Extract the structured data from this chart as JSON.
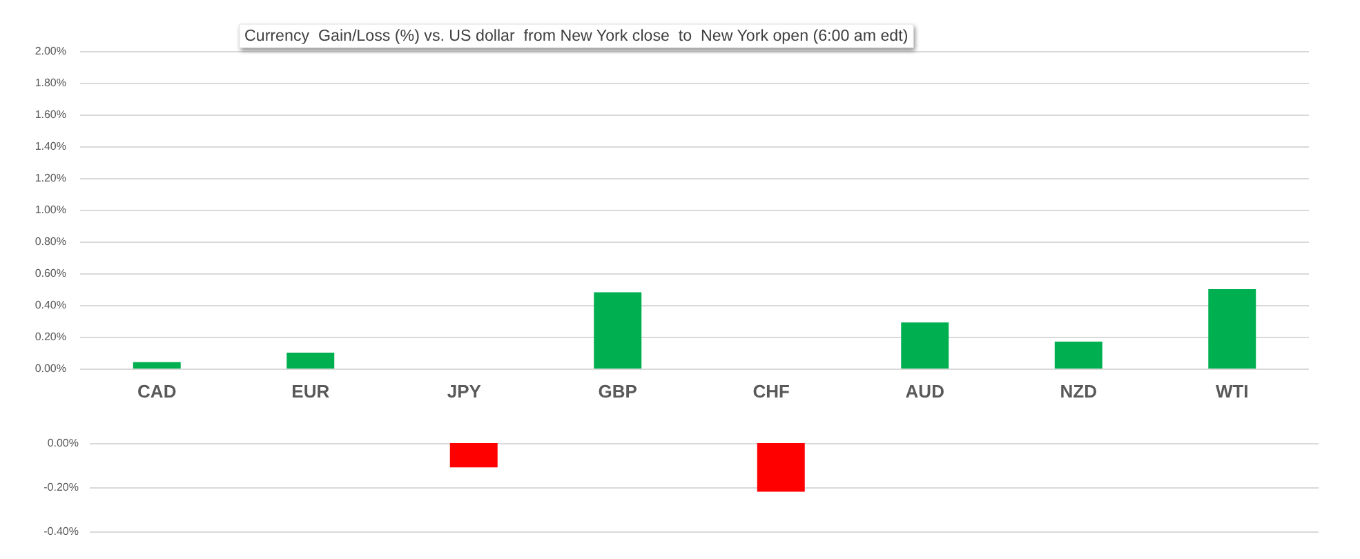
{
  "chart_data": [
    {
      "type": "bar",
      "title": "Currency  Gain/Loss (%) vs. US dollar  from New York close  to  New York open (6:00 am edt)",
      "categories": [
        "CAD",
        "EUR",
        "JPY",
        "GBP",
        "CHF",
        "AUD",
        "NZD",
        "WTI"
      ],
      "values": [
        0.04,
        0.1,
        null,
        0.48,
        null,
        0.29,
        0.17,
        0.5
      ],
      "color": "#00b050",
      "ylim": [
        0,
        2
      ],
      "yticks": [
        {
          "value": 0,
          "label": "0.00%"
        },
        {
          "value": 0.2,
          "label": "0.20%"
        },
        {
          "value": 0.4,
          "label": "0.40%"
        },
        {
          "value": 0.6,
          "label": "0.60%"
        },
        {
          "value": 0.8,
          "label": "0.80%"
        },
        {
          "value": 1.0,
          "label": "1.00%"
        },
        {
          "value": 1.2,
          "label": "1.20%"
        },
        {
          "value": 1.4,
          "label": "1.40%"
        },
        {
          "value": 1.6,
          "label": "1.60%"
        },
        {
          "value": 1.8,
          "label": "1.80%"
        },
        {
          "value": 2.0,
          "label": "2.00%"
        }
      ],
      "grid": "y"
    },
    {
      "type": "bar",
      "categories": [
        null,
        null,
        null,
        null,
        null,
        null,
        null,
        null
      ],
      "values": [
        null,
        null,
        -0.11,
        null,
        -0.22,
        null,
        null,
        null
      ],
      "color": "#ff0000",
      "ylim": [
        -0.4,
        0
      ],
      "yticks": [
        {
          "value": 0,
          "label": "0.00%"
        },
        {
          "value": -0.2,
          "label": "-0.20%"
        },
        {
          "value": -0.4,
          "label": "-0.40%"
        }
      ],
      "grid": "y"
    }
  ]
}
